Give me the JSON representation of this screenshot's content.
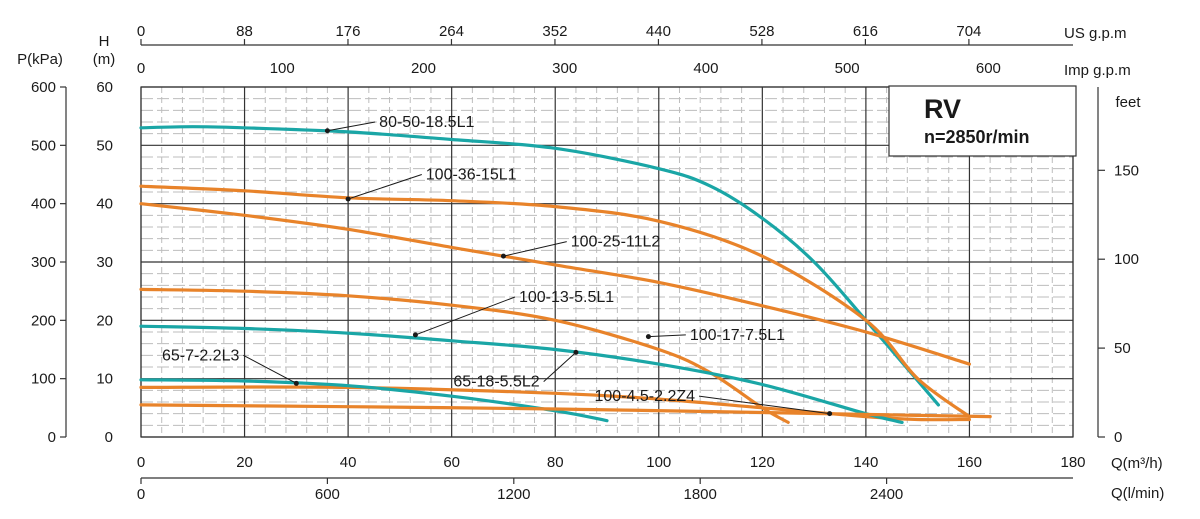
{
  "chart_data": {
    "type": "line",
    "title": "RV",
    "subtitle": "n=2850r/min",
    "xlabel": "Q(m³/h)",
    "xlabel_lpm": "Q(l/min)",
    "xlabel_usgpm": "US g.p.m",
    "xlabel_impgpm": "Imp g.p.m",
    "ylabel_head_top": "H",
    "ylabel_head_unit": "(m)",
    "ylabel_pressure": "P(kPa)",
    "ylabel_feet": "feet",
    "xlim": [
      0,
      180
    ],
    "ylim": [
      0,
      60
    ],
    "grid": true,
    "x_ticks": [
      "0",
      "20",
      "40",
      "60",
      "80",
      "100",
      "120",
      "140",
      "160",
      "180"
    ],
    "y_ticks": [
      "0",
      "10",
      "20",
      "30",
      "40",
      "50",
      "60"
    ],
    "kpa_ticks": [
      "0",
      "100",
      "200",
      "300",
      "400",
      "500",
      "600"
    ],
    "lpm_ticks": [
      {
        "label": "0",
        "value": 0
      },
      {
        "label": "600",
        "value": 600
      },
      {
        "label": "1200",
        "value": 1200
      },
      {
        "label": "1800",
        "value": 1800
      },
      {
        "label": "2400",
        "value": 2400
      }
    ],
    "usgpm_ticks": [
      {
        "label": "0",
        "value": 0
      },
      {
        "label": "88",
        "value": 88
      },
      {
        "label": "176",
        "value": 176
      },
      {
        "label": "264",
        "value": 264
      },
      {
        "label": "352",
        "value": 352
      },
      {
        "label": "440",
        "value": 440
      },
      {
        "label": "528",
        "value": 528
      },
      {
        "label": "616",
        "value": 616
      },
      {
        "label": "704",
        "value": 704
      }
    ],
    "impgpm_ticks": [
      {
        "label": "0",
        "value": 0
      },
      {
        "label": "100",
        "value": 100
      },
      {
        "label": "200",
        "value": 200
      },
      {
        "label": "300",
        "value": 300
      },
      {
        "label": "400",
        "value": 400
      },
      {
        "label": "500",
        "value": 500
      },
      {
        "label": "600",
        "value": 600
      }
    ],
    "feet_ticks": [
      {
        "label": "0",
        "value": 0
      },
      {
        "label": "50",
        "value": 50
      },
      {
        "label": "100",
        "value": 100
      },
      {
        "label": "150",
        "value": 150
      }
    ],
    "colors": {
      "teal": "#1aa6a6",
      "orange": "#e8832a",
      "grid": "#333333",
      "minor": "#bdbdbd"
    },
    "series": [
      {
        "name": "80-50-18.5L1",
        "color": "teal",
        "x": [
          0,
          10,
          20,
          40,
          60,
          80,
          100,
          110,
          120,
          130,
          140,
          154
        ],
        "y": [
          53,
          53.2,
          53,
          52.3,
          51,
          49.5,
          46,
          43,
          37.5,
          30,
          20,
          5.5
        ]
      },
      {
        "name": "100-36-15L1",
        "color": "orange",
        "x": [
          0,
          20,
          40,
          60,
          80,
          100,
          120,
          140,
          150,
          160
        ],
        "y": [
          43,
          42.2,
          41,
          40.5,
          39.5,
          37,
          31,
          20,
          10,
          3.5
        ]
      },
      {
        "name": "100-25-11L2",
        "color": "orange",
        "x": [
          0,
          20,
          40,
          60,
          80,
          100,
          120,
          140,
          160
        ],
        "y": [
          40,
          38,
          35.6,
          32.5,
          29.5,
          26.5,
          22.5,
          18,
          12.5
        ]
      },
      {
        "name": "100-13-5.5L1",
        "color": "orange",
        "x": [
          0,
          20,
          40,
          60,
          80,
          100,
          110,
          120,
          125
        ],
        "y": [
          25.3,
          25,
          24.2,
          22.6,
          20,
          15,
          11,
          5,
          2.5
        ]
      },
      {
        "name": "100-17-7.5L1",
        "color": "orange",
        "x": [
          0,
          40,
          80,
          100,
          120,
          140,
          150,
          160
        ],
        "y": [
          8.5,
          8.5,
          7.5,
          6.5,
          5,
          3.5,
          3,
          3
        ]
      },
      {
        "name": "65-18-5.5L2",
        "color": "teal",
        "x": [
          0,
          20,
          40,
          60,
          80,
          100,
          120,
          140,
          147
        ],
        "y": [
          19,
          18.6,
          17.8,
          16.5,
          15,
          12.5,
          9,
          4,
          2.5
        ]
      },
      {
        "name": "65-7-2.2L3",
        "color": "teal",
        "x": [
          0,
          20,
          40,
          60,
          80,
          90
        ],
        "y": [
          9.8,
          9.6,
          8.8,
          7,
          4.5,
          2.8
        ]
      },
      {
        "name": "100-4.5-2.2Z4",
        "color": "orange",
        "x": [
          0,
          40,
          80,
          120,
          150,
          164
        ],
        "y": [
          5.5,
          5.2,
          4.8,
          4.2,
          3.7,
          3.5
        ]
      }
    ],
    "annotations": [
      {
        "text": "80-50-18.5L1",
        "point": [
          36,
          52.5
        ],
        "target": [
          46,
          54
        ],
        "anchor": "start"
      },
      {
        "text": "100-36-15L1",
        "point": [
          40,
          40.8
        ],
        "target": [
          55,
          45
        ],
        "anchor": "start"
      },
      {
        "text": "100-25-11L2",
        "point": [
          70,
          31
        ],
        "target": [
          83,
          33.5
        ],
        "anchor": "start"
      },
      {
        "text": "100-13-5.5L1",
        "point": [
          53,
          17.5
        ],
        "target": [
          73,
          24
        ],
        "anchor": "start"
      },
      {
        "text": "100-17-7.5L1",
        "point": [
          98,
          17.2
        ],
        "target": [
          106,
          17.5
        ],
        "anchor": "start"
      },
      {
        "text": "65-18-5.5L2",
        "point": [
          84,
          14.5
        ],
        "target": [
          77,
          9.5
        ],
        "anchor": "end"
      },
      {
        "text": "65-7-2.2L3",
        "point": [
          30,
          9.2
        ],
        "target": [
          19,
          14
        ],
        "anchor": "end"
      },
      {
        "text": "100-4.5-2.2Z4",
        "point": [
          133,
          4
        ],
        "target": [
          107,
          7
        ],
        "anchor": "end"
      }
    ]
  }
}
